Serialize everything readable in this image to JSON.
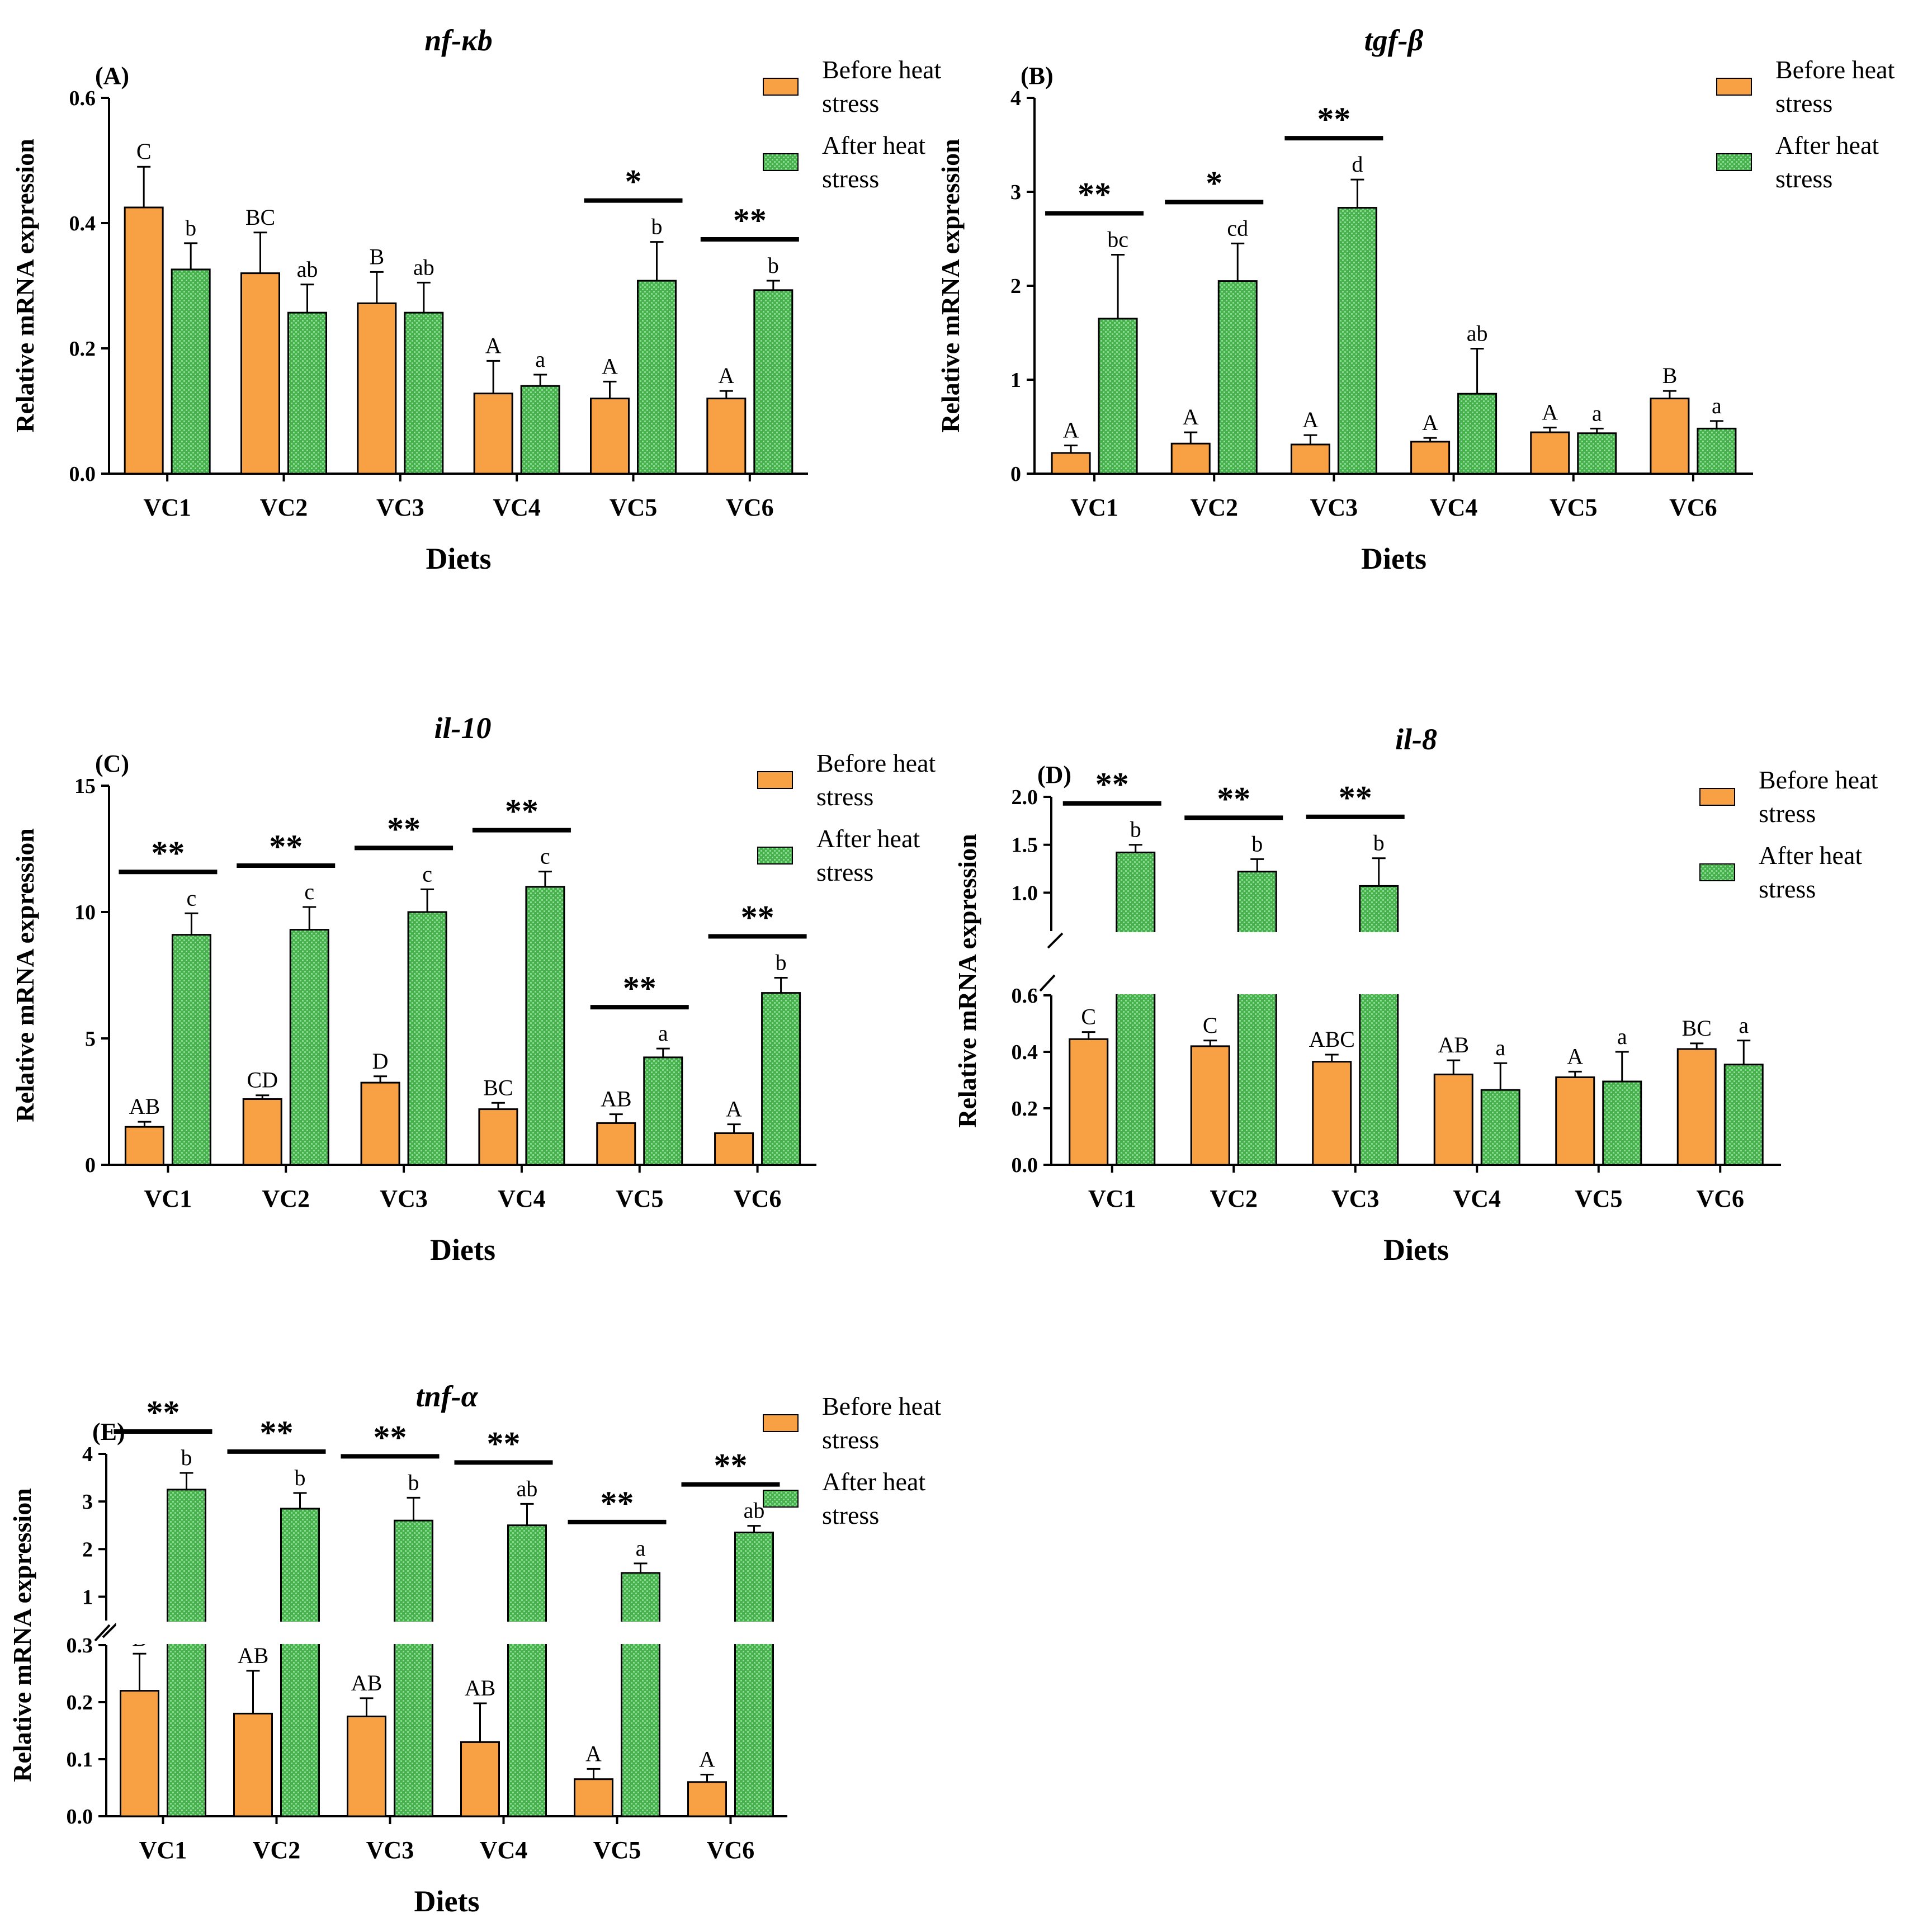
{
  "colors": {
    "before": "#F8A044",
    "after": "#45B34A",
    "axis": "#000000",
    "hatch": "#8FD69A"
  },
  "chart_data": [
    {
      "type": "bar",
      "panel": "(A)",
      "title": "nf-κb",
      "xlabel": "Diets",
      "ylabel": "Relative mRNA expression",
      "categories": [
        "VC1",
        "VC2",
        "VC3",
        "VC4",
        "VC5",
        "VC6"
      ],
      "ylim": [
        0,
        0.6
      ],
      "yticks": [
        "0.0",
        "0.2",
        "0.4",
        "0.6"
      ],
      "series": [
        {
          "name": "Before heat stress",
          "values": [
            0.425,
            0.32,
            0.272,
            0.128,
            0.12,
            0.12
          ],
          "errors": [
            0.065,
            0.065,
            0.05,
            0.052,
            0.027,
            0.012
          ],
          "letters": [
            "C",
            "BC",
            "B",
            "A",
            "A",
            "A"
          ]
        },
        {
          "name": "After heat stress",
          "values": [
            0.326,
            0.257,
            0.257,
            0.14,
            0.308,
            0.293
          ],
          "errors": [
            0.042,
            0.045,
            0.048,
            0.018,
            0.062,
            0.015
          ],
          "letters": [
            "b",
            "ab",
            "ab",
            "a",
            "b",
            "b"
          ]
        }
      ],
      "significance": [
        "",
        "",
        "",
        "",
        "*",
        "**"
      ]
    },
    {
      "type": "bar",
      "panel": "(B)",
      "title": "tgf-β",
      "xlabel": "Diets",
      "ylabel": "Relative mRNA expression",
      "categories": [
        "VC1",
        "VC2",
        "VC3",
        "VC4",
        "VC5",
        "VC6"
      ],
      "ylim": [
        0,
        4
      ],
      "yticks": [
        "0",
        "1",
        "2",
        "3",
        "4"
      ],
      "series": [
        {
          "name": "Before heat stress",
          "values": [
            0.22,
            0.32,
            0.31,
            0.34,
            0.44,
            0.8
          ],
          "errors": [
            0.08,
            0.12,
            0.1,
            0.04,
            0.05,
            0.08
          ],
          "letters": [
            "A",
            "A",
            "A",
            "A",
            "A",
            "B"
          ]
        },
        {
          "name": "After heat stress",
          "values": [
            1.65,
            2.05,
            2.83,
            0.85,
            0.43,
            0.48
          ],
          "errors": [
            0.68,
            0.4,
            0.3,
            0.48,
            0.05,
            0.08
          ],
          "letters": [
            "bc",
            "cd",
            "d",
            "ab",
            "a",
            "a"
          ]
        }
      ],
      "significance": [
        "**",
        "*",
        "**",
        "",
        "",
        ""
      ]
    },
    {
      "type": "bar",
      "panel": "(C)",
      "title": "il-10",
      "xlabel": "Diets",
      "ylabel": "Relative mRNA expression",
      "categories": [
        "VC1",
        "VC2",
        "VC3",
        "VC4",
        "VC5",
        "VC6"
      ],
      "ylim": [
        0,
        15
      ],
      "yticks": [
        "0",
        "5",
        "10",
        "15"
      ],
      "series": [
        {
          "name": "Before heat stress",
          "values": [
            1.5,
            2.6,
            3.25,
            2.2,
            1.65,
            1.25
          ],
          "errors": [
            0.2,
            0.15,
            0.25,
            0.25,
            0.35,
            0.35
          ],
          "letters": [
            "AB",
            "CD",
            "D",
            "BC",
            "AB",
            "A"
          ]
        },
        {
          "name": "After heat stress",
          "values": [
            9.1,
            9.3,
            10.0,
            11.0,
            4.25,
            6.8
          ],
          "errors": [
            0.85,
            0.9,
            0.9,
            0.6,
            0.35,
            0.6
          ],
          "letters": [
            "c",
            "c",
            "c",
            "c",
            "a",
            "b"
          ]
        }
      ],
      "significance": [
        "**",
        "**",
        "**",
        "**",
        "**",
        "**"
      ]
    },
    {
      "type": "bar",
      "panel": "(D)",
      "title": "il-8",
      "xlabel": "Diets",
      "ylabel": "Relative mRNA expression",
      "categories": [
        "VC1",
        "VC2",
        "VC3",
        "VC4",
        "VC5",
        "VC6"
      ],
      "axis_break": true,
      "lower_ylim": [
        0,
        0.6
      ],
      "upper_ylim": [
        0.6,
        2.0
      ],
      "yticks": [
        "0.0",
        "0.2",
        "0.4",
        "0.6",
        "1.0",
        "1.5",
        "2.0"
      ],
      "series": [
        {
          "name": "Before heat stress",
          "values": [
            0.445,
            0.42,
            0.365,
            0.32,
            0.31,
            0.41
          ],
          "errors": [
            0.025,
            0.02,
            0.025,
            0.05,
            0.02,
            0.02
          ],
          "letters": [
            "C",
            "C",
            "ABC",
            "AB",
            "A",
            "BC"
          ]
        },
        {
          "name": "After heat stress",
          "values": [
            1.42,
            1.22,
            1.07,
            0.265,
            0.295,
            0.355
          ],
          "errors": [
            0.08,
            0.13,
            0.29,
            0.095,
            0.105,
            0.085
          ],
          "letters": [
            "b",
            "b",
            "b",
            "a",
            "a",
            "a"
          ]
        }
      ],
      "significance": [
        "**",
        "**",
        "**",
        "",
        "",
        ""
      ]
    },
    {
      "type": "bar",
      "panel": "(E)",
      "title": "tnf-α",
      "xlabel": "Diets",
      "ylabel": "Relative mRNA expression",
      "categories": [
        "VC1",
        "VC2",
        "VC3",
        "VC4",
        "VC5",
        "VC6"
      ],
      "axis_break": true,
      "lower_ylim": [
        0,
        0.3
      ],
      "upper_ylim": [
        0.5,
        4
      ],
      "yticks": [
        "0.0",
        "0.1",
        "0.2",
        "0.3",
        "1",
        "2",
        "3",
        "4"
      ],
      "series": [
        {
          "name": "Before heat stress",
          "values": [
            0.22,
            0.18,
            0.175,
            0.13,
            0.065,
            0.06
          ],
          "errors": [
            0.065,
            0.075,
            0.032,
            0.068,
            0.018,
            0.013
          ],
          "letters": [
            "B",
            "AB",
            "AB",
            "AB",
            "A",
            "A"
          ]
        },
        {
          "name": "After heat stress",
          "values": [
            3.25,
            2.85,
            2.6,
            2.5,
            1.5,
            2.35
          ],
          "errors": [
            0.35,
            0.33,
            0.48,
            0.45,
            0.2,
            0.14
          ],
          "letters": [
            "b",
            "b",
            "b",
            "ab",
            "a",
            "ab"
          ]
        }
      ],
      "significance": [
        "**",
        "**",
        "**",
        "**",
        "**",
        "**"
      ]
    }
  ]
}
